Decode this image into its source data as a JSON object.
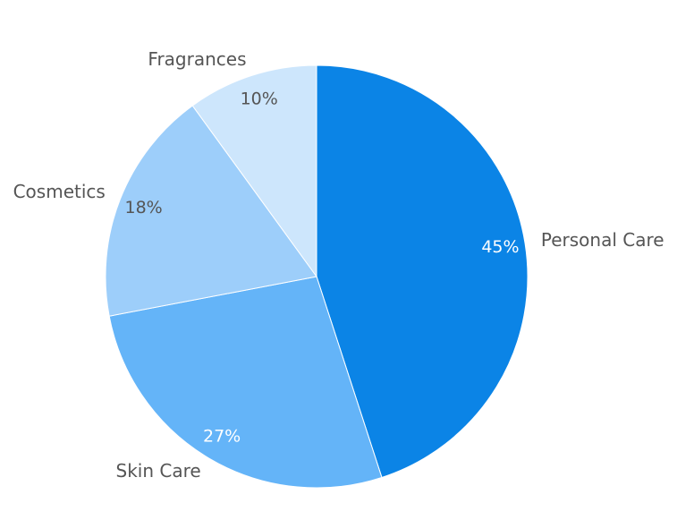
{
  "chart_data": {
    "type": "pie",
    "title": "",
    "slices": [
      {
        "label": "Personal Care",
        "value": 45,
        "display": "45%",
        "color": "#0b84e6",
        "text_color": "#ffffff"
      },
      {
        "label": "Skin Care",
        "value": 27,
        "display": "27%",
        "color": "#64b4f8",
        "text_color": "#ffffff"
      },
      {
        "label": "Cosmetics",
        "value": 18,
        "display": "18%",
        "color": "#9dcefa",
        "text_color": "#555555"
      },
      {
        "label": "Fragrances",
        "value": 10,
        "display": "10%",
        "color": "#cde6fc",
        "text_color": "#555555"
      }
    ],
    "start_angle": "12 o'clock",
    "direction": "clockwise",
    "legend": "none"
  }
}
